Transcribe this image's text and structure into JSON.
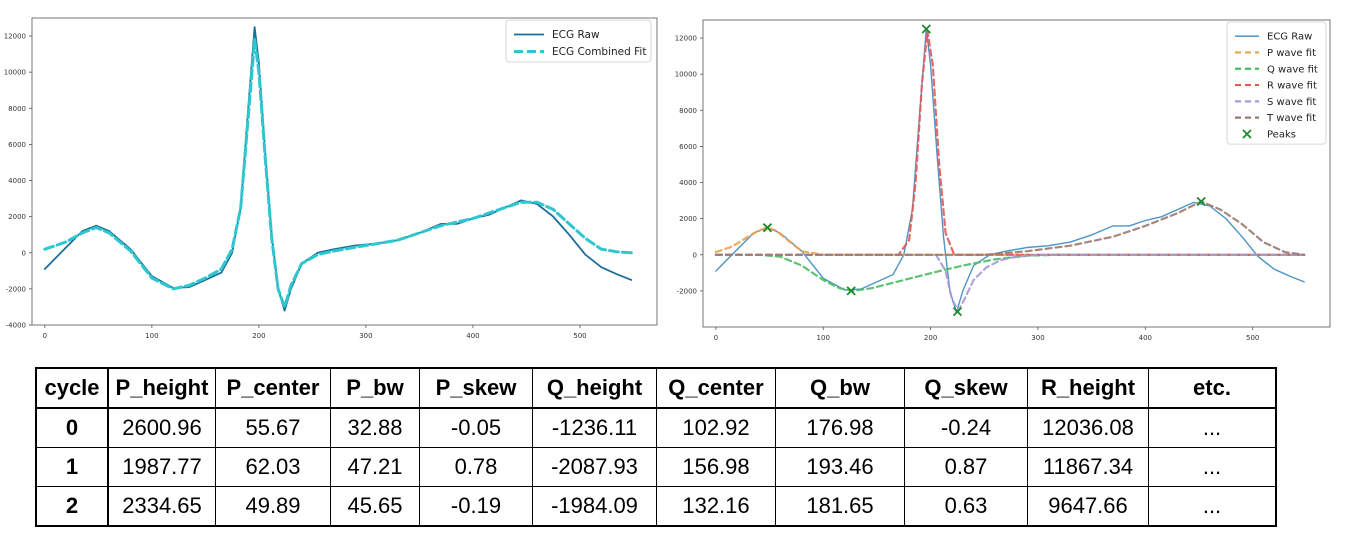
{
  "colors": {
    "raw_left": "#1a6f98",
    "fit_left": "#2ec7d0",
    "raw_right": "#3a89c0",
    "p_fit": "#f0a04a",
    "q_fit": "#4cbb66",
    "r_fit": "#e05a5a",
    "s_fit": "#a999d4",
    "t_fit": "#9a7a70",
    "peaks": "#1a8a2a"
  },
  "chart_data": [
    {
      "type": "line",
      "xlim": [
        -12,
        572
      ],
      "ylim": [
        -4000,
        13000
      ],
      "xticks": [
        0,
        100,
        200,
        300,
        400,
        500
      ],
      "yticks": [
        -4000,
        -2000,
        0,
        2000,
        4000,
        6000,
        8000,
        10000,
        12000
      ],
      "grid": false,
      "legend_position": "top-right",
      "series": [
        {
          "name": "ECG Raw",
          "style": "solid",
          "color_key": "raw_left",
          "x": [
            0,
            20,
            35,
            48,
            60,
            80,
            100,
            120,
            135,
            150,
            165,
            175,
            183,
            190,
            196,
            200,
            206,
            212,
            218,
            224,
            230,
            240,
            255,
            270,
            290,
            310,
            330,
            350,
            370,
            385,
            400,
            415,
            430,
            445,
            460,
            475,
            490,
            505,
            520,
            535,
            548
          ],
          "y": [
            -900,
            300,
            1200,
            1500,
            1200,
            200,
            -1300,
            -1950,
            -1900,
            -1500,
            -1100,
            0,
            2500,
            8000,
            12500,
            10500,
            5500,
            1000,
            -2000,
            -3200,
            -2000,
            -600,
            0,
            200,
            400,
            500,
            700,
            1100,
            1600,
            1600,
            1900,
            2100,
            2500,
            2900,
            2700,
            2000,
            1000,
            -100,
            -800,
            -1200,
            -1500
          ]
        },
        {
          "name": "ECG Combined Fit",
          "style": "dashed",
          "color_key": "fit_left",
          "x": [
            0,
            20,
            35,
            48,
            60,
            80,
            100,
            120,
            135,
            150,
            165,
            175,
            183,
            190,
            196,
            200,
            206,
            212,
            218,
            224,
            230,
            240,
            255,
            270,
            290,
            310,
            330,
            350,
            370,
            385,
            400,
            415,
            430,
            445,
            460,
            475,
            490,
            505,
            520,
            535,
            548
          ],
          "y": [
            200,
            600,
            1100,
            1400,
            1100,
            100,
            -1400,
            -2000,
            -1800,
            -1400,
            -900,
            200,
            2500,
            7500,
            11800,
            10000,
            5200,
            800,
            -2000,
            -3000,
            -1800,
            -600,
            -100,
            100,
            300,
            500,
            700,
            1100,
            1500,
            1700,
            1900,
            2200,
            2500,
            2800,
            2800,
            2400,
            1600,
            800,
            200,
            50,
            0
          ]
        }
      ]
    },
    {
      "type": "line",
      "xlim": [
        -12,
        572
      ],
      "ylim": [
        -4000,
        13000
      ],
      "xticks": [
        0,
        100,
        200,
        300,
        400,
        500
      ],
      "yticks": [
        -2000,
        0,
        2000,
        4000,
        6000,
        8000,
        10000,
        12000
      ],
      "grid": false,
      "legend_position": "top-right",
      "series": [
        {
          "name": "ECG Raw",
          "style": "solid",
          "color_key": "raw_right",
          "x": [
            0,
            20,
            35,
            48,
            60,
            80,
            100,
            120,
            135,
            150,
            165,
            175,
            183,
            190,
            196,
            200,
            206,
            212,
            218,
            224,
            230,
            240,
            255,
            270,
            290,
            310,
            330,
            350,
            370,
            385,
            400,
            415,
            430,
            445,
            460,
            475,
            490,
            505,
            520,
            535,
            548
          ],
          "y": [
            -900,
            300,
            1200,
            1500,
            1200,
            200,
            -1300,
            -1950,
            -1900,
            -1500,
            -1100,
            0,
            2500,
            8000,
            12500,
            10500,
            5500,
            1000,
            -2000,
            -3200,
            -2000,
            -600,
            0,
            200,
            400,
            500,
            700,
            1100,
            1600,
            1600,
            1900,
            2100,
            2500,
            2900,
            2700,
            2000,
            1000,
            -100,
            -800,
            -1200,
            -1500
          ]
        },
        {
          "name": "P wave fit",
          "style": "dashed",
          "color_key": "p_fit",
          "x": [
            0,
            15,
            30,
            40,
            48,
            56,
            66,
            80,
            100,
            548
          ],
          "y": [
            150,
            450,
            1000,
            1350,
            1500,
            1350,
            850,
            200,
            0,
            0
          ]
        },
        {
          "name": "Q wave fit",
          "style": "dashed",
          "color_key": "q_fit",
          "x": [
            0,
            40,
            60,
            80,
            100,
            115,
            128,
            145,
            165,
            185,
            205,
            230,
            260,
            290,
            320,
            548
          ],
          "y": [
            0,
            0,
            -100,
            -600,
            -1400,
            -1850,
            -2000,
            -1850,
            -1550,
            -1250,
            -950,
            -600,
            -250,
            -50,
            0,
            0
          ]
        },
        {
          "name": "R wave fit",
          "style": "dashed",
          "color_key": "r_fit",
          "x": [
            0,
            170,
            180,
            186,
            192,
            197,
            202,
            208,
            214,
            222,
            548
          ],
          "y": [
            0,
            0,
            800,
            4000,
            9500,
            12400,
            10500,
            5000,
            1200,
            0,
            0
          ]
        },
        {
          "name": "S wave fit",
          "style": "dashed",
          "color_key": "s_fit",
          "x": [
            0,
            205,
            214,
            220,
            226,
            232,
            240,
            252,
            265,
            280,
            300,
            548
          ],
          "y": [
            0,
            0,
            -900,
            -2500,
            -3100,
            -2400,
            -1400,
            -700,
            -300,
            -100,
            0,
            0
          ]
        },
        {
          "name": "T wave fit",
          "style": "dashed",
          "color_key": "t_fit",
          "x": [
            0,
            250,
            290,
            330,
            370,
            400,
            430,
            452,
            470,
            490,
            510,
            530,
            548
          ],
          "y": [
            0,
            0,
            200,
            500,
            1000,
            1600,
            2300,
            2950,
            2500,
            1700,
            700,
            150,
            0
          ]
        }
      ],
      "peaks": {
        "name": "Peaks",
        "color_key": "peaks",
        "x": [
          48,
          126,
          196,
          225,
          452
        ],
        "y": [
          1500,
          -2000,
          12500,
          -3150,
          2950
        ]
      }
    }
  ],
  "table": {
    "headers": [
      "cycle",
      "P_height",
      "P_center",
      "P_bw",
      "P_skew",
      "Q_height",
      "Q_center",
      "Q_bw",
      "Q_skew",
      "R_height",
      "etc."
    ],
    "rows": [
      [
        "0",
        "2600.96",
        "55.67",
        "32.88",
        "-0.05",
        "-1236.11",
        "102.92",
        "176.98",
        "-0.24",
        "12036.08",
        "..."
      ],
      [
        "1",
        "1987.77",
        "62.03",
        "47.21",
        "0.78",
        "-2087.93",
        "156.98",
        "193.46",
        "0.87",
        "11867.34",
        "..."
      ],
      [
        "2",
        "2334.65",
        "49.89",
        "45.65",
        "-0.19",
        "-1984.09",
        "132.16",
        "181.65",
        "0.63",
        "9647.66",
        "..."
      ]
    ]
  }
}
